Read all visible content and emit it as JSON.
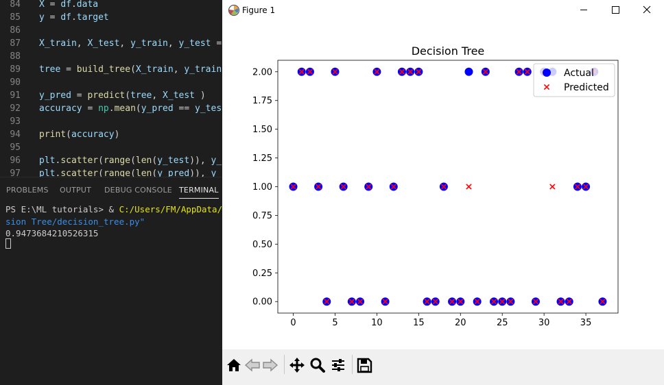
{
  "editor": {
    "lines": [
      {
        "num": "84",
        "tokens": [
          [
            "X",
            "var"
          ],
          [
            " = ",
            "op"
          ],
          [
            "df",
            "var"
          ],
          [
            ".",
            "op"
          ],
          [
            "data",
            "var"
          ]
        ]
      },
      {
        "num": "85",
        "tokens": [
          [
            "y",
            "var"
          ],
          [
            " = ",
            "op"
          ],
          [
            "df",
            "var"
          ],
          [
            ".",
            "op"
          ],
          [
            "target",
            "var"
          ]
        ]
      },
      {
        "num": "86",
        "tokens": []
      },
      {
        "num": "87",
        "tokens": [
          [
            "X_train",
            "var"
          ],
          [
            ", ",
            "op"
          ],
          [
            "X_test",
            "var"
          ],
          [
            ", ",
            "op"
          ],
          [
            "y_train",
            "var"
          ],
          [
            ", ",
            "op"
          ],
          [
            "y_test",
            "var"
          ],
          [
            " = ",
            "op"
          ]
        ]
      },
      {
        "num": "88",
        "tokens": []
      },
      {
        "num": "89",
        "tokens": [
          [
            "tree",
            "var"
          ],
          [
            " = ",
            "op"
          ],
          [
            "build_tree",
            "fn"
          ],
          [
            "(",
            "op"
          ],
          [
            "X_train",
            "var"
          ],
          [
            ", ",
            "op"
          ],
          [
            "y_train",
            "var"
          ],
          [
            ")",
            "op"
          ]
        ]
      },
      {
        "num": "90",
        "tokens": []
      },
      {
        "num": "91",
        "tokens": [
          [
            "y_pred",
            "var"
          ],
          [
            " = ",
            "op"
          ],
          [
            "predict",
            "fn"
          ],
          [
            "(",
            "op"
          ],
          [
            "tree",
            "var"
          ],
          [
            ", ",
            "op"
          ],
          [
            "X_test",
            "var"
          ],
          [
            " )",
            "op"
          ]
        ]
      },
      {
        "num": "92",
        "tokens": [
          [
            "accuracy",
            "var"
          ],
          [
            " = ",
            "op"
          ],
          [
            "np",
            "mod"
          ],
          [
            ".",
            "op"
          ],
          [
            "mean",
            "fn"
          ],
          [
            "(",
            "op"
          ],
          [
            "y_pred",
            "var"
          ],
          [
            " == ",
            "op"
          ],
          [
            "y_test",
            "var"
          ]
        ]
      },
      {
        "num": "93",
        "tokens": []
      },
      {
        "num": "94",
        "tokens": [
          [
            "print",
            "fn"
          ],
          [
            "(",
            "op"
          ],
          [
            "accuracy",
            "var"
          ],
          [
            ")",
            "op"
          ]
        ]
      },
      {
        "num": "95",
        "tokens": []
      },
      {
        "num": "96",
        "tokens": [
          [
            "plt",
            "var"
          ],
          [
            ".",
            "op"
          ],
          [
            "scatter",
            "fn"
          ],
          [
            "(",
            "op"
          ],
          [
            "range",
            "fn"
          ],
          [
            "(",
            "op"
          ],
          [
            "len",
            "fn"
          ],
          [
            "(",
            "op"
          ],
          [
            "y_test",
            "var"
          ],
          [
            ")), ",
            "op"
          ],
          [
            "y_t",
            "var"
          ]
        ]
      },
      {
        "num": "97",
        "tokens": [
          [
            "plt",
            "var"
          ],
          [
            ".",
            "op"
          ],
          [
            "scatter",
            "fn"
          ],
          [
            "(",
            "op"
          ],
          [
            "range",
            "fn"
          ],
          [
            "(",
            "op"
          ],
          [
            "len",
            "fn"
          ],
          [
            "(",
            "op"
          ],
          [
            "y_pred",
            "var"
          ],
          [
            ")), ",
            "op"
          ],
          [
            "y_p",
            "var"
          ]
        ]
      }
    ]
  },
  "panel": {
    "tabs": [
      {
        "label": "PROBLEMS",
        "active": false
      },
      {
        "label": "OUTPUT",
        "active": false
      },
      {
        "label": "DEBUG CONSOLE",
        "active": false
      },
      {
        "label": "TERMINAL",
        "active": true
      }
    ]
  },
  "terminal": {
    "prompt": "PS E:\\ML tutorials> & ",
    "command_path": "C:/Users/FM/AppData/Loc",
    "continuation": "sion Tree/decision_tree.py\"",
    "output": "0.9473684210526315"
  },
  "figure": {
    "window_title": "Figure 1",
    "icons": {
      "app": "matplotlib-icon",
      "minimize": "minimize-icon",
      "maximize": "maximize-icon",
      "close": "close-icon"
    },
    "toolbar": [
      "home-icon",
      "back-arrow-icon",
      "forward-arrow-icon",
      "pan-icon",
      "zoom-icon",
      "configure-subplots-icon",
      "save-icon"
    ]
  },
  "colors": {
    "actual": "#0000ff",
    "predicted": "#ff0000",
    "axis": "#000000"
  },
  "chart_data": {
    "type": "scatter",
    "title": "Decision Tree",
    "xlabel": "",
    "ylabel": "",
    "xlim": [
      -1.85,
      38.85
    ],
    "ylim": [
      -0.1,
      2.1
    ],
    "xticks": [
      0,
      5,
      10,
      15,
      20,
      25,
      30,
      35
    ],
    "yticks": [
      0.0,
      0.25,
      0.5,
      0.75,
      1.0,
      1.25,
      1.5,
      1.75,
      2.0
    ],
    "ytick_labels": [
      "0.00",
      "0.25",
      "0.50",
      "0.75",
      "1.00",
      "1.25",
      "1.50",
      "1.75",
      "2.00"
    ],
    "legend_position": "top-right",
    "series": [
      {
        "name": "Actual",
        "marker": "circle",
        "values": [
          1,
          2,
          2,
          1,
          0,
          2,
          1,
          0,
          0,
          1,
          2,
          0,
          1,
          2,
          2,
          2,
          0,
          0,
          1,
          0,
          0,
          2,
          0,
          2,
          0,
          0,
          0,
          2,
          2,
          0,
          2,
          2,
          0,
          0,
          1,
          1,
          2,
          0
        ]
      },
      {
        "name": "Predicted",
        "marker": "x",
        "values": [
          1,
          2,
          2,
          1,
          0,
          2,
          1,
          0,
          0,
          1,
          2,
          0,
          1,
          2,
          2,
          2,
          0,
          0,
          1,
          0,
          0,
          1,
          0,
          2,
          0,
          0,
          0,
          2,
          2,
          0,
          2,
          1,
          0,
          0,
          1,
          1,
          2,
          0
        ]
      }
    ]
  }
}
